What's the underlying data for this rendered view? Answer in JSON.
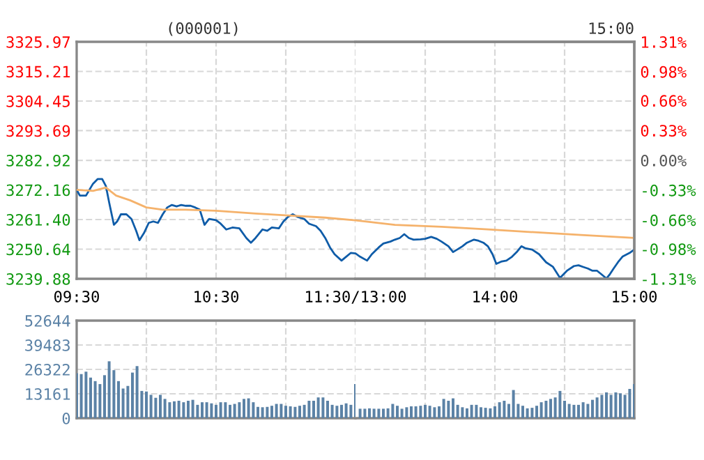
{
  "chart_data": [
    {
      "type": "line",
      "title": "(000001)",
      "xlim": [
        9.5,
        11.5
      ],
      "xticks": [
        {
          "value": 9.5,
          "label": "09:30"
        },
        {
          "value": 10,
          "label": null
        },
        {
          "value": 10.5,
          "label": "10:30"
        },
        {
          "value": 11,
          "label": null
        },
        {
          "value": 11.5,
          "label": "11:30/13:00"
        }
      ],
      "ylim": [
        3239.88,
        3325.97
      ],
      "yticks": [
        {
          "value": 3239.88,
          "label": "3239.88"
        },
        {
          "value": 3250.64,
          "label": "3250.64"
        },
        {
          "value": 3261.4,
          "label": "3261.40"
        },
        {
          "value": 3272.16,
          "label": "3272.16"
        },
        {
          "value": 3282.92,
          "label": "3282.92"
        },
        {
          "value": 3293.69,
          "label": "3293.69"
        },
        {
          "value": 3304.45,
          "label": "3304.45"
        },
        {
          "value": 3315.21,
          "label": "3315.21"
        },
        {
          "value": 3325.97,
          "label": "3325.97"
        }
      ],
      "grid": true,
      "series": [
        {
          "color": "#0f5ca8",
          "x": [
            9.5,
            9.523,
            9.567,
            9.617,
            9.65,
            9.683,
            9.71,
            9.733,
            9.767,
            9.79,
            9.817,
            9.857,
            9.893,
            9.927,
            9.95,
            9.983,
            10.017,
            10.05,
            10.083,
            10.117,
            10.15,
            10.183,
            10.217,
            10.25,
            10.283,
            10.317,
            10.35,
            10.383,
            10.417,
            10.45,
            10.5,
            10.533,
            10.573,
            10.617,
            10.667,
            10.717,
            10.75,
            10.783,
            10.833,
            10.867,
            10.9,
            10.95,
            10.983,
            11.017,
            11.05,
            11.083,
            11.133,
            11.167,
            11.217,
            11.25,
            11.283,
            11.317,
            11.35,
            11.4,
            11.433,
            11.467,
            11.5
          ],
          "values": [
            3272.2,
            3270.1,
            3270.1,
            3274.4,
            3276.1,
            3276.1,
            3273.5,
            3267.6,
            3259.5,
            3260.7,
            3263.3,
            3263.3,
            3261.6,
            3257.3,
            3253.9,
            3256.5,
            3260.2,
            3260.7,
            3260.2,
            3263.3,
            3265.8,
            3266.7,
            3266.2,
            3266.7,
            3266.4,
            3266.4,
            3265.8,
            3265.0,
            3259.5,
            3261.6,
            3261.2,
            3259.9,
            3257.8,
            3258.5,
            3258.2,
            3254.7,
            3253.0,
            3254.7,
            3257.8,
            3257.3,
            3258.5,
            3258.2,
            3260.7,
            3262.4,
            3263.3,
            3262.4,
            3261.6,
            3259.9,
            3259.0,
            3257.3,
            3254.7,
            3251.3,
            3248.8,
            3246.5,
            3247.9,
            3249.3,
            3249.1
          ]
        },
        {
          "color": "#f5b26b",
          "x": [
            9.5,
            9.617,
            9.71,
            9.783,
            9.883,
            10,
            10.117,
            10.283,
            10.5,
            10.783,
            11.017,
            11.283,
            11.5
          ],
          "values": [
            3272.2,
            3271.8,
            3273.0,
            3270.1,
            3268.4,
            3265.8,
            3265.0,
            3265.0,
            3264.6,
            3263.6,
            3262.9,
            3262.1,
            3261.1
          ]
        }
      ]
    },
    {
      "type": "line",
      "annotations": [
        "15:00"
      ],
      "tick_labels": "x",
      "xlim": [
        13,
        15
      ],
      "xticks": [
        {
          "value": 13.5,
          "label": null
        },
        {
          "value": 14,
          "label": "14:00"
        },
        {
          "value": 14.5,
          "label": null
        },
        {
          "value": 15,
          "label": "15:00"
        }
      ],
      "ylim": [
        3239.88,
        3325.97
      ],
      "yticks": [
        3239.88,
        3250.64,
        3261.4,
        3272.16,
        3282.92,
        3293.69,
        3304.45,
        3315.21,
        3325.97
      ],
      "y2lim": [
        -1.31,
        1.31
      ],
      "y2ticks": [
        {
          "value": -1.31,
          "label": "-1.31%"
        },
        {
          "value": -0.98,
          "label": "-0.98%"
        },
        {
          "value": -0.66,
          "label": "-0.66%"
        },
        {
          "value": -0.33,
          "label": "-0.33%"
        },
        {
          "value": 0,
          "label": "0.00%"
        },
        {
          "value": 0.33,
          "label": "0.33%"
        },
        {
          "value": 0.66,
          "label": "0.66%"
        },
        {
          "value": 0.98,
          "label": "0.98%"
        },
        {
          "value": 1.31,
          "label": "1.31%"
        }
      ],
      "grid": true,
      "series": [
        {
          "color": "#0f5ca8",
          "x": [
            13,
            13.033,
            13.083,
            13.117,
            13.167,
            13.2,
            13.25,
            13.283,
            13.317,
            13.35,
            13.383,
            13.417,
            13.467,
            13.5,
            13.543,
            13.583,
            13.617,
            13.667,
            13.7,
            13.733,
            13.767,
            13.8,
            13.85,
            13.883,
            13.917,
            13.95,
            13.983,
            14.01,
            14.05,
            14.083,
            14.123,
            14.157,
            14.19,
            14.217,
            14.267,
            14.317,
            14.367,
            14.417,
            14.467,
            14.49,
            14.517,
            14.567,
            14.6,
            14.633,
            14.667,
            14.7,
            14.733,
            14.767,
            14.8,
            14.823,
            14.85,
            14.883,
            14.917,
            14.967,
            15
          ],
          "values": [
            3249.1,
            3247.9,
            3246.5,
            3248.8,
            3251.3,
            3252.7,
            3253.4,
            3254.1,
            3254.7,
            3256.1,
            3254.7,
            3254.1,
            3254.2,
            3254.4,
            3255.1,
            3254.4,
            3253.4,
            3251.7,
            3249.6,
            3250.6,
            3251.7,
            3253.0,
            3254.1,
            3253.7,
            3253.0,
            3251.7,
            3248.8,
            3245.3,
            3246.2,
            3246.5,
            3247.9,
            3249.6,
            3251.7,
            3251.0,
            3250.5,
            3248.8,
            3245.9,
            3244.2,
            3240.2,
            3241.4,
            3242.8,
            3244.5,
            3244.8,
            3244.2,
            3243.6,
            3242.8,
            3242.8,
            3241.4,
            3240.0,
            3241.4,
            3243.5,
            3245.9,
            3248.0,
            3249.3,
            3250.5
          ]
        },
        {
          "color": "#f5b26b",
          "x": [
            13,
            13.283,
            13.617,
            13.95,
            14.283,
            14.617,
            15
          ],
          "values": [
            3261.1,
            3259.5,
            3258.8,
            3257.8,
            3256.8,
            3255.8,
            3254.7
          ]
        }
      ]
    },
    {
      "type": "bar",
      "tick_labels": "y",
      "color": "#5b82a6",
      "grid": true,
      "xlim": [
        9.5,
        11.5
      ],
      "xticks": [
        {
          "value": 9.5,
          "label": null
        },
        {
          "value": 10,
          "label": null
        },
        {
          "value": 10.5,
          "label": null
        },
        {
          "value": 11,
          "label": null
        },
        {
          "value": 11.5,
          "label": null
        }
      ],
      "ylim": [
        0,
        52644
      ],
      "yticks": [
        0,
        13161,
        26322,
        39483,
        52644
      ],
      "x": [
        9.5,
        9.533,
        9.567,
        9.6,
        9.633,
        9.667,
        9.7,
        9.733,
        9.767,
        9.8,
        9.833,
        9.867,
        9.9,
        9.933,
        9.967,
        10,
        10.033,
        10.067,
        10.1,
        10.133,
        10.167,
        10.2,
        10.233,
        10.267,
        10.3,
        10.333,
        10.367,
        10.4,
        10.433,
        10.467,
        10.5,
        10.533,
        10.567,
        10.6,
        10.633,
        10.667,
        10.7,
        10.733,
        10.767,
        10.8,
        10.833,
        10.867,
        10.9,
        10.933,
        10.967,
        11,
        11.033,
        11.067,
        11.1,
        11.133,
        11.167,
        11.2,
        11.233,
        11.267,
        11.3,
        11.333,
        11.367,
        11.4,
        11.433,
        11.467,
        11.5
      ],
      "values": [
        24300,
        23800,
        25100,
        21900,
        20000,
        18400,
        23200,
        30700,
        25900,
        20000,
        16000,
        17400,
        24600,
        28100,
        14700,
        14400,
        12600,
        11000,
        12600,
        10400,
        8600,
        9100,
        9400,
        8600,
        9400,
        9900,
        7200,
        8600,
        8600,
        8000,
        7200,
        8600,
        8600,
        7200,
        7700,
        8600,
        10400,
        10700,
        8600,
        6100,
        5900,
        6100,
        6700,
        7700,
        7700,
        6700,
        6400,
        6100,
        6700,
        7200,
        9400,
        9400,
        11200,
        11200,
        9400,
        7200,
        6700,
        7200,
        8000,
        7200,
        18400
      ]
    },
    {
      "type": "bar",
      "tick_labels": false,
      "color": "#5b82a6",
      "grid": true,
      "xlim": [
        13,
        15
      ],
      "xticks": [
        {
          "value": 13.5,
          "label": null
        },
        {
          "value": 14,
          "label": null
        },
        {
          "value": 14.5,
          "label": null
        },
        {
          "value": 15,
          "label": null
        }
      ],
      "ylim": [
        0,
        52644
      ],
      "yticks": [
        0,
        13161,
        26322,
        39483,
        52644
      ],
      "x": [
        13.033,
        13.067,
        13.1,
        13.133,
        13.167,
        13.2,
        13.233,
        13.267,
        13.3,
        13.333,
        13.367,
        13.4,
        13.433,
        13.467,
        13.5,
        13.533,
        13.567,
        13.6,
        13.633,
        13.667,
        13.7,
        13.733,
        13.767,
        13.8,
        13.833,
        13.867,
        13.9,
        13.933,
        13.967,
        14,
        14.033,
        14.067,
        14.1,
        14.133,
        14.167,
        14.2,
        14.233,
        14.267,
        14.3,
        14.333,
        14.367,
        14.4,
        14.433,
        14.467,
        14.5,
        14.533,
        14.567,
        14.6,
        14.633,
        14.667,
        14.7,
        14.733,
        14.767,
        14.8,
        14.833,
        14.867,
        14.9,
        14.933,
        14.967,
        15
      ],
      "values": [
        5100,
        5100,
        5300,
        5100,
        5100,
        5100,
        5300,
        7700,
        6700,
        5100,
        5900,
        6400,
        6400,
        6700,
        7200,
        6700,
        5900,
        6400,
        10400,
        9400,
        10700,
        7200,
        5900,
        5300,
        7200,
        7200,
        5900,
        5600,
        5300,
        6400,
        8600,
        9400,
        7700,
        15200,
        7700,
        6700,
        5300,
        5600,
        6700,
        8600,
        9400,
        10400,
        11200,
        14700,
        9400,
        7700,
        7200,
        7200,
        8600,
        7700,
        9900,
        11200,
        12600,
        13900,
        12600,
        13900,
        13400,
        12600,
        15800,
        18400
      ]
    }
  ]
}
